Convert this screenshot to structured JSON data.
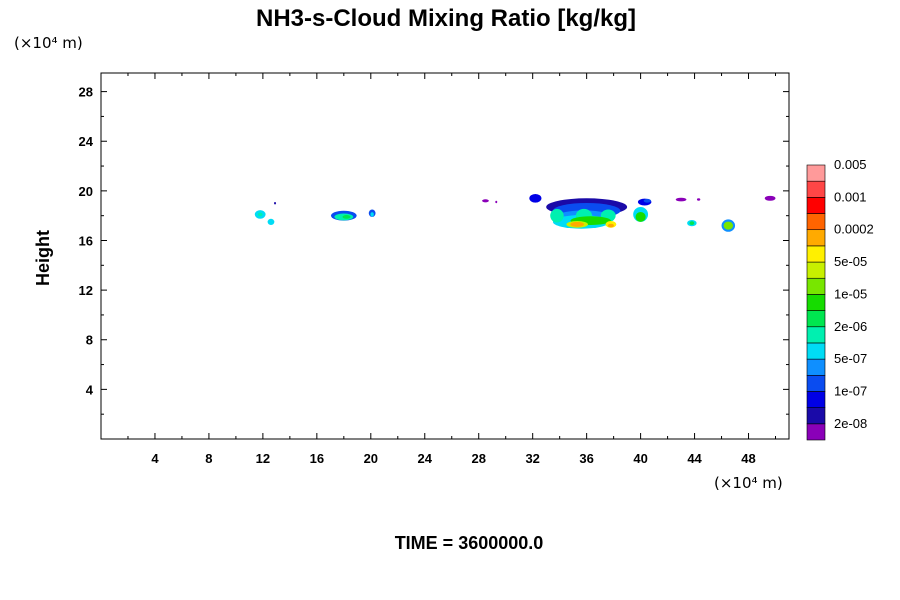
{
  "chart_data": {
    "type": "heatmap",
    "title": "NH3-s-Cloud Mixing Ratio [kg/kg]",
    "xlabel": "",
    "ylabel": "Height",
    "x_unit": "(×10⁴ m)",
    "y_unit": "(×10⁴ m)",
    "xlim": [
      0,
      51
    ],
    "ylim": [
      0,
      29.5
    ],
    "x_ticks": [
      4,
      8,
      12,
      16,
      20,
      24,
      28,
      32,
      36,
      40,
      44,
      48
    ],
    "y_ticks": [
      4,
      8,
      12,
      16,
      20,
      24,
      28
    ],
    "grid": false,
    "footer": "TIME = 3600000.0",
    "colorbar": {
      "colors": [
        "#8a00b8",
        "#1a0aa8",
        "#0000e6",
        "#0a4cf0",
        "#0f8fff",
        "#00dcf5",
        "#00f0b0",
        "#00e650",
        "#16dc00",
        "#78e600",
        "#c8f000",
        "#fff000",
        "#ffaa00",
        "#ff6400",
        "#ff0000",
        "#ff4646",
        "#ff9a9a"
      ],
      "labels": [
        "2e-08",
        "1e-07",
        "5e-07",
        "2e-06",
        "1e-05",
        "5e-05",
        "0.0002",
        "0.001",
        "0.005"
      ]
    },
    "cloud_patches": [
      {
        "x": 11.8,
        "y": 18.1,
        "w": 0.8,
        "h": 0.7,
        "level": 5
      },
      {
        "x": 11.8,
        "y": 18.1,
        "w": 0.35,
        "h": 0.3,
        "level": 6
      },
      {
        "x": 12.6,
        "y": 17.5,
        "w": 0.5,
        "h": 0.5,
        "level": 5
      },
      {
        "x": 12.9,
        "y": 19.0,
        "w": 0.15,
        "h": 0.2,
        "level": 1
      },
      {
        "x": 18.0,
        "y": 18.0,
        "w": 1.9,
        "h": 0.8,
        "level": 3
      },
      {
        "x": 18.0,
        "y": 17.9,
        "w": 1.4,
        "h": 0.55,
        "level": 6
      },
      {
        "x": 18.2,
        "y": 17.9,
        "w": 0.6,
        "h": 0.3,
        "level": 7
      },
      {
        "x": 20.1,
        "y": 18.2,
        "w": 0.5,
        "h": 0.6,
        "level": 3
      },
      {
        "x": 20.1,
        "y": 18.1,
        "w": 0.25,
        "h": 0.35,
        "level": 5
      },
      {
        "x": 28.5,
        "y": 19.2,
        "w": 0.5,
        "h": 0.25,
        "level": 0
      },
      {
        "x": 29.3,
        "y": 19.1,
        "w": 0.15,
        "h": 0.2,
        "level": 0
      },
      {
        "x": 36.0,
        "y": 18.7,
        "w": 6.0,
        "h": 1.4,
        "level": 1
      },
      {
        "x": 32.2,
        "y": 19.4,
        "w": 0.9,
        "h": 0.7,
        "level": 2
      },
      {
        "x": 36.0,
        "y": 18.4,
        "w": 5.0,
        "h": 1.25,
        "level": 3
      },
      {
        "x": 35.8,
        "y": 17.8,
        "w": 4.5,
        "h": 1.25,
        "level": 4
      },
      {
        "x": 35.6,
        "y": 17.5,
        "w": 4.2,
        "h": 1.1,
        "level": 5
      },
      {
        "x": 33.8,
        "y": 18.0,
        "w": 1.0,
        "h": 1.1,
        "level": 6
      },
      {
        "x": 35.8,
        "y": 18.0,
        "w": 1.2,
        "h": 1.1,
        "level": 6
      },
      {
        "x": 37.6,
        "y": 18.0,
        "w": 1.1,
        "h": 1.0,
        "level": 6
      },
      {
        "x": 36.3,
        "y": 17.6,
        "w": 3.0,
        "h": 0.7,
        "level": 8
      },
      {
        "x": 35.3,
        "y": 17.3,
        "w": 1.6,
        "h": 0.55,
        "level": 10
      },
      {
        "x": 35.3,
        "y": 17.3,
        "w": 1.0,
        "h": 0.4,
        "level": 12
      },
      {
        "x": 37.8,
        "y": 17.3,
        "w": 0.8,
        "h": 0.55,
        "level": 11
      },
      {
        "x": 37.8,
        "y": 17.2,
        "w": 0.45,
        "h": 0.3,
        "level": 12
      },
      {
        "x": 40.0,
        "y": 18.1,
        "w": 1.1,
        "h": 1.2,
        "level": 5
      },
      {
        "x": 40.0,
        "y": 17.9,
        "w": 0.75,
        "h": 0.8,
        "level": 8
      },
      {
        "x": 40.3,
        "y": 19.1,
        "w": 1.0,
        "h": 0.55,
        "level": 2
      },
      {
        "x": 40.5,
        "y": 19.2,
        "w": 0.55,
        "h": 0.3,
        "level": 3
      },
      {
        "x": 43.0,
        "y": 19.3,
        "w": 0.8,
        "h": 0.3,
        "level": 0
      },
      {
        "x": 44.3,
        "y": 19.3,
        "w": 0.25,
        "h": 0.2,
        "level": 0
      },
      {
        "x": 43.8,
        "y": 17.4,
        "w": 0.7,
        "h": 0.5,
        "level": 5
      },
      {
        "x": 43.8,
        "y": 17.4,
        "w": 0.35,
        "h": 0.3,
        "level": 7
      },
      {
        "x": 46.5,
        "y": 17.2,
        "w": 1.0,
        "h": 1.0,
        "level": 4
      },
      {
        "x": 46.5,
        "y": 17.2,
        "w": 0.7,
        "h": 0.65,
        "level": 9
      },
      {
        "x": 49.6,
        "y": 19.4,
        "w": 0.8,
        "h": 0.4,
        "level": 0
      }
    ]
  }
}
